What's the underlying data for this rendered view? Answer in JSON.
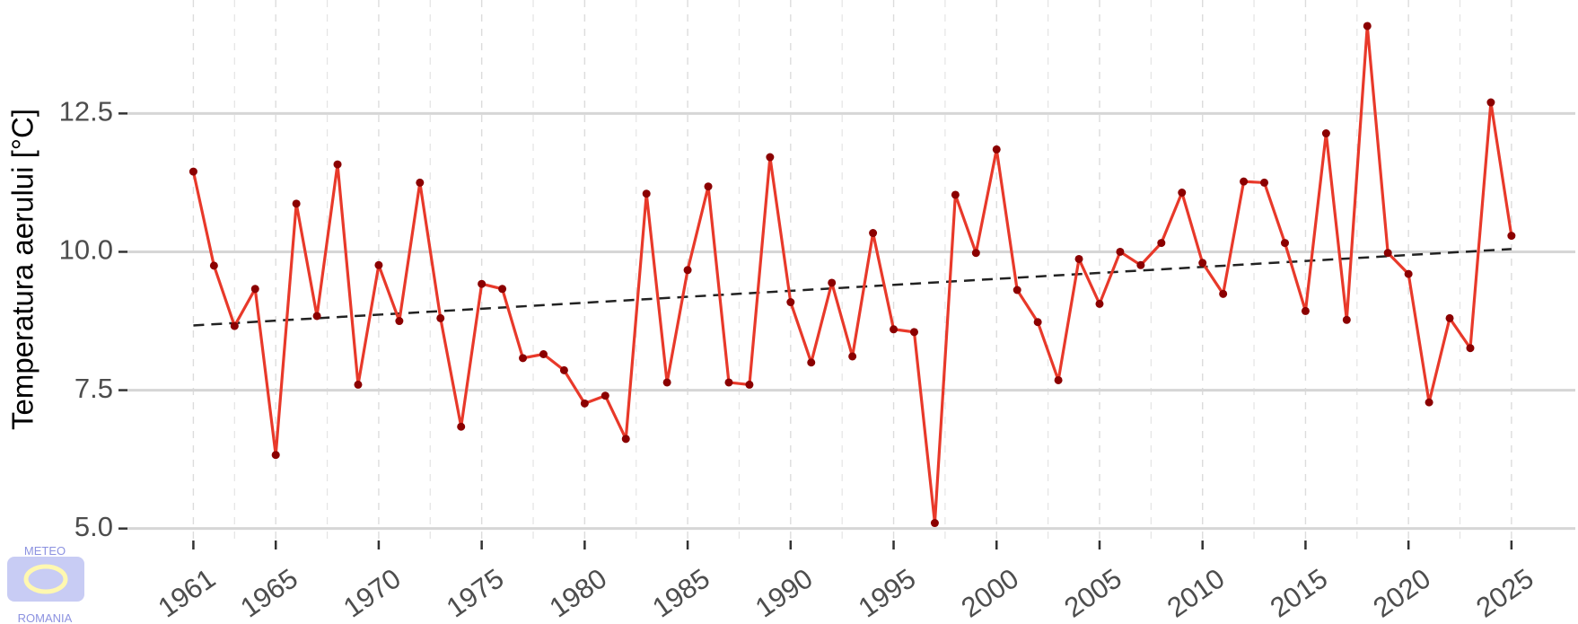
{
  "chart_data": {
    "type": "line",
    "y_label": "Temperatura aerului [°C]",
    "logo": {
      "top": "METEO",
      "bottom": "ROMANIA"
    },
    "x": [
      1961,
      1962,
      1963,
      1964,
      1965,
      1966,
      1967,
      1968,
      1969,
      1970,
      1971,
      1972,
      1973,
      1974,
      1975,
      1976,
      1977,
      1978,
      1979,
      1980,
      1981,
      1982,
      1983,
      1984,
      1985,
      1986,
      1987,
      1988,
      1989,
      1990,
      1991,
      1992,
      1993,
      1994,
      1995,
      1996,
      1997,
      1998,
      1999,
      2000,
      2001,
      2002,
      2003,
      2004,
      2005,
      2006,
      2007,
      2008,
      2009,
      2010,
      2011,
      2012,
      2013,
      2014,
      2015,
      2016,
      2017,
      2018,
      2019,
      2020,
      2021,
      2022,
      2023,
      2024,
      2025
    ],
    "series": [
      {
        "color": "#e8392a",
        "marker_color": "#8b0000",
        "values": [
          11.45,
          9.75,
          8.66,
          9.33,
          6.33,
          10.87,
          8.84,
          11.58,
          7.6,
          9.76,
          8.75,
          11.25,
          8.8,
          6.84,
          9.42,
          9.33,
          8.08,
          8.15,
          7.86,
          7.26,
          7.4,
          6.62,
          11.05,
          7.64,
          9.67,
          11.18,
          7.64,
          7.6,
          11.71,
          9.09,
          8.0,
          9.44,
          8.11,
          10.34,
          8.6,
          8.55,
          5.1,
          11.03,
          9.98,
          11.85,
          9.31,
          8.73,
          7.68,
          9.87,
          9.06,
          10.0,
          9.76,
          10.16,
          11.07,
          9.8,
          9.24,
          11.27,
          11.25,
          10.16,
          8.93,
          12.14,
          8.77,
          14.08,
          9.98,
          9.6,
          7.28,
          8.8,
          8.26,
          12.7,
          10.29
        ]
      }
    ],
    "trend": {
      "color": "#222222",
      "x": [
        1961,
        2025
      ],
      "values": [
        8.67,
        10.05
      ]
    },
    "xlim": [
      1957.8,
      2028.1
    ],
    "xticks": [
      1961,
      1965,
      1970,
      1975,
      1980,
      1985,
      1990,
      1995,
      2000,
      2005,
      2010,
      2015,
      2020,
      2025
    ],
    "x_minor_ticks": [
      1963,
      1967.5,
      1972.5,
      1977.5,
      1982.5,
      1987.5,
      1992.5,
      1997.5,
      2002.5,
      2007.5,
      2012.5,
      2017.5,
      2022.5
    ],
    "ylim": [
      4.8,
      14.55
    ],
    "yticks": [
      {
        "value": 5,
        "label": "5.0"
      },
      7.5,
      {
        "value": 10,
        "label": "10.0"
      },
      12.5
    ],
    "grid": true
  }
}
